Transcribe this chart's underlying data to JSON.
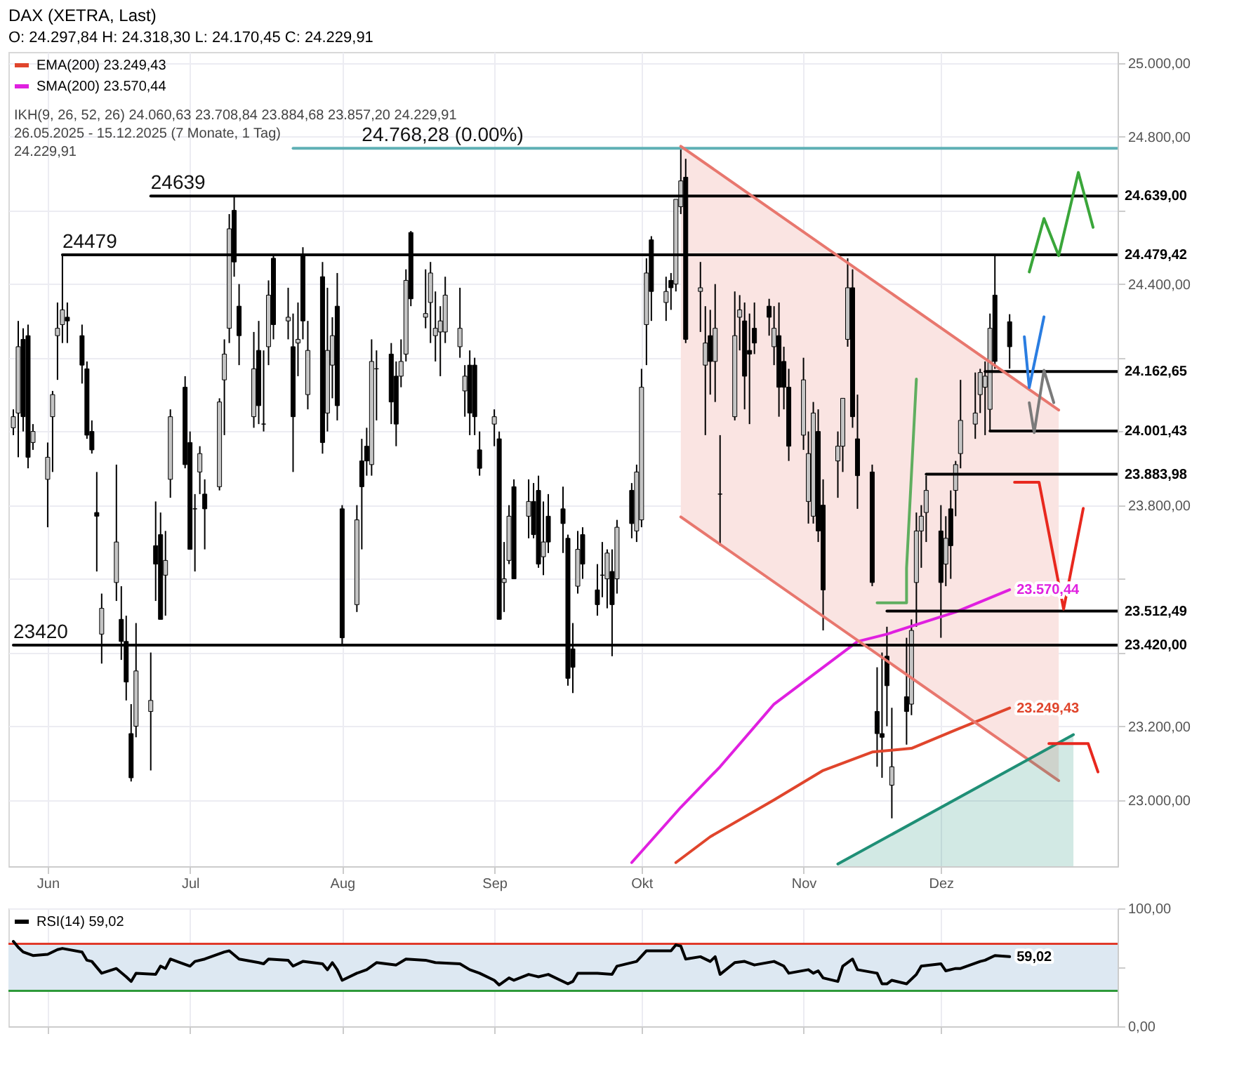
{
  "chart_data": [
    {
      "type": "candlestick",
      "title": "DAX (XETRA, Last)",
      "subtitle": "O: 24.297,84 H: 24.318,30 L: 24.170,45 C: 24.229,91",
      "x": [
        "2025-05-26",
        "2025-05-27",
        "2025-05-28",
        "2025-05-29",
        "2025-05-30",
        "2025-06-02",
        "2025-06-03",
        "2025-06-04",
        "2025-06-05",
        "2025-06-06",
        "2025-06-09",
        "2025-06-10",
        "2025-06-11",
        "2025-06-12",
        "2025-06-13",
        "2025-06-16",
        "2025-06-17",
        "2025-06-18",
        "2025-06-19",
        "2025-06-20",
        "2025-06-23",
        "2025-06-24",
        "2025-06-25",
        "2025-06-26",
        "2025-06-27",
        "2025-06-30",
        "2025-07-01",
        "2025-07-02",
        "2025-07-03",
        "2025-07-04",
        "2025-07-07",
        "2025-07-08",
        "2025-07-09",
        "2025-07-10",
        "2025-07-11",
        "2025-07-14",
        "2025-07-15",
        "2025-07-16",
        "2025-07-17",
        "2025-07-18",
        "2025-07-21",
        "2025-07-22",
        "2025-07-23",
        "2025-07-24",
        "2025-07-25",
        "2025-07-28",
        "2025-07-29",
        "2025-07-30",
        "2025-07-31",
        "2025-08-01",
        "2025-08-04",
        "2025-08-05",
        "2025-08-06",
        "2025-08-07",
        "2025-08-08",
        "2025-08-11",
        "2025-08-12",
        "2025-08-13",
        "2025-08-14",
        "2025-08-15",
        "2025-08-18",
        "2025-08-19",
        "2025-08-20",
        "2025-08-21",
        "2025-08-22",
        "2025-08-25",
        "2025-08-26",
        "2025-08-27",
        "2025-08-28",
        "2025-08-29",
        "2025-09-01",
        "2025-09-02",
        "2025-09-03",
        "2025-09-04",
        "2025-09-05",
        "2025-09-08",
        "2025-09-09",
        "2025-09-10",
        "2025-09-11",
        "2025-09-12",
        "2025-09-15",
        "2025-09-16",
        "2025-09-17",
        "2025-09-18",
        "2025-09-19",
        "2025-09-22",
        "2025-09-23",
        "2025-09-24",
        "2025-09-25",
        "2025-09-26",
        "2025-09-29",
        "2025-09-30",
        "2025-10-01",
        "2025-10-02",
        "2025-10-03",
        "2025-10-06",
        "2025-10-07",
        "2025-10-08",
        "2025-10-09",
        "2025-10-10",
        "2025-10-13",
        "2025-10-14",
        "2025-10-15",
        "2025-10-16",
        "2025-10-17",
        "2025-10-20",
        "2025-10-21",
        "2025-10-22",
        "2025-10-23",
        "2025-10-24",
        "2025-10-27",
        "2025-10-28",
        "2025-10-29",
        "2025-10-30",
        "2025-10-31",
        "2025-11-03",
        "2025-11-04",
        "2025-11-05",
        "2025-11-06",
        "2025-11-07",
        "2025-11-10",
        "2025-11-11",
        "2025-11-12",
        "2025-11-13",
        "2025-11-14",
        "2025-11-17",
        "2025-11-18",
        "2025-11-19",
        "2025-11-20",
        "2025-11-21",
        "2025-11-24",
        "2025-11-25",
        "2025-11-26",
        "2025-11-27",
        "2025-11-28",
        "2025-12-01",
        "2025-12-02",
        "2025-12-03",
        "2025-12-04",
        "2025-12-05",
        "2025-12-08",
        "2025-12-09",
        "2025-12-10",
        "2025-12-11",
        "2025-12-12",
        "2025-12-15"
      ],
      "ohlc": [
        [
          24010,
          24060,
          23990,
          24040
        ],
        [
          24050,
          24300,
          23930,
          24230
        ],
        [
          24250,
          24280,
          24000,
          24040
        ],
        [
          24260,
          24290,
          23900,
          23930
        ],
        [
          23970,
          24020,
          23950,
          24000
        ],
        [
          23870,
          23970,
          23740,
          23930
        ],
        [
          24040,
          24110,
          23890,
          24100
        ],
        [
          24260,
          24350,
          24140,
          24280
        ],
        [
          24290,
          24480,
          24240,
          24330
        ],
        [
          24310,
          24350,
          24240,
          24300
        ],
        [
          24260,
          24290,
          24130,
          24180
        ],
        [
          24170,
          24190,
          23980,
          23990
        ],
        [
          24000,
          24030,
          23940,
          23950
        ],
        [
          23780,
          23890,
          23620,
          23770
        ],
        [
          23450,
          23560,
          23370,
          23520
        ],
        [
          23590,
          23910,
          23540,
          23700
        ],
        [
          23490,
          23580,
          23380,
          23430
        ],
        [
          23430,
          23500,
          23270,
          23320
        ],
        [
          23180,
          23260,
          23050,
          23060
        ],
        [
          23200,
          23480,
          23170,
          23350
        ],
        [
          23240,
          23400,
          23080,
          23270
        ],
        [
          23690,
          23810,
          23540,
          23640
        ],
        [
          23720,
          23780,
          23490,
          23490
        ],
        [
          23610,
          23730,
          23500,
          23650
        ],
        [
          23870,
          24060,
          23820,
          24040
        ],
        [
          24120,
          24150,
          23900,
          23910
        ],
        [
          23970,
          24000,
          23680,
          23680
        ],
        [
          23790,
          23830,
          23620,
          23790
        ],
        [
          23890,
          23960,
          23830,
          23940
        ],
        [
          23830,
          23870,
          23680,
          23790
        ],
        [
          23850,
          24090,
          23840,
          24080
        ],
        [
          24140,
          24250,
          23990,
          24210
        ],
        [
          24280,
          24590,
          24240,
          24550
        ],
        [
          24600,
          24639,
          24420,
          24460
        ],
        [
          24340,
          24400,
          24180,
          24260
        ],
        [
          24040,
          24270,
          24010,
          24170
        ],
        [
          24220,
          24300,
          24020,
          24070
        ],
        [
          24020,
          24220,
          24000,
          24020
        ],
        [
          24230,
          24410,
          24180,
          24370
        ],
        [
          24470,
          24479,
          24250,
          24290
        ],
        [
          24300,
          24390,
          24250,
          24310
        ],
        [
          24230,
          24320,
          23890,
          24040
        ],
        [
          24240,
          24350,
          24150,
          24250
        ],
        [
          24480,
          24500,
          24250,
          24300
        ],
        [
          24100,
          24300,
          24060,
          24220
        ],
        [
          24420,
          24460,
          23940,
          23970
        ],
        [
          24050,
          24390,
          24000,
          24220
        ],
        [
          24180,
          24310,
          24090,
          24260
        ],
        [
          24340,
          24430,
          24030,
          24070
        ],
        [
          23790,
          23800,
          23420,
          23440
        ],
        [
          23530,
          23800,
          23510,
          23760
        ],
        [
          23920,
          23980,
          23680,
          23850
        ],
        [
          23960,
          24010,
          23880,
          23920
        ],
        [
          23910,
          24250,
          23880,
          24190
        ],
        [
          24170,
          24220,
          24030,
          24170
        ],
        [
          24210,
          24240,
          24020,
          24080
        ],
        [
          24150,
          24190,
          23960,
          24020
        ],
        [
          24150,
          24250,
          24120,
          24190
        ],
        [
          24210,
          24440,
          24190,
          24410
        ],
        [
          24540,
          24544,
          24340,
          24360
        ],
        [
          24310,
          24440,
          24280,
          24320
        ],
        [
          24350,
          24460,
          24240,
          24430
        ],
        [
          24260,
          24380,
          24190,
          24280
        ],
        [
          24270,
          24340,
          24150,
          24300
        ],
        [
          24270,
          24420,
          24240,
          24370
        ],
        [
          24230,
          24390,
          24200,
          24280
        ],
        [
          24110,
          24180,
          24040,
          24150
        ],
        [
          24180,
          24220,
          23990,
          24050
        ],
        [
          24180,
          24200,
          23990,
          24040
        ],
        [
          23950,
          24000,
          23880,
          23900
        ],
        [
          24020,
          24060,
          23960,
          24040
        ],
        [
          23980,
          24000,
          23490,
          23490
        ],
        [
          23590,
          23700,
          23510,
          23600
        ],
        [
          23650,
          23800,
          23640,
          23770
        ],
        [
          23850,
          23870,
          23600,
          23600
        ],
        [
          23770,
          23870,
          23710,
          23810
        ],
        [
          23810,
          23860,
          23710,
          23720
        ],
        [
          23840,
          23880,
          23630,
          23640
        ],
        [
          23660,
          23810,
          23610,
          23700
        ],
        [
          23770,
          23830,
          23670,
          23700
        ],
        [
          23790,
          23850,
          23670,
          23750
        ],
        [
          23710,
          23720,
          23310,
          23330
        ],
        [
          23410,
          23480,
          23290,
          23360
        ],
        [
          23580,
          23730,
          23560,
          23680
        ],
        [
          23720,
          23740,
          23600,
          23640
        ],
        [
          23570,
          23640,
          23500,
          23530
        ],
        [
          23610,
          23700,
          23550,
          23610
        ],
        [
          23600,
          23680,
          23520,
          23670
        ],
        [
          23620,
          23680,
          23390,
          23530
        ],
        [
          23600,
          23760,
          23560,
          23740
        ],
        [
          23840,
          23860,
          23710,
          23750
        ],
        [
          23730,
          23910,
          23700,
          23890
        ],
        [
          23760,
          24170,
          23740,
          24120
        ],
        [
          24290,
          24470,
          24180,
          24430
        ],
        [
          24520,
          24530,
          24300,
          24380
        ],
        [
          24350,
          24420,
          24300,
          24380
        ],
        [
          24410,
          24430,
          24330,
          24390
        ],
        [
          24400,
          24630,
          24380,
          24630
        ],
        [
          24610,
          24768.28,
          24590,
          24680
        ],
        [
          24690,
          24740,
          24240,
          24250
        ],
        [
          24380,
          24460,
          24270,
          24390
        ],
        [
          24180,
          24340,
          23990,
          24240
        ],
        [
          24260,
          24330,
          24100,
          24190
        ],
        [
          24190,
          24400,
          24080,
          24280
        ],
        [
          23830,
          23990,
          23690,
          23830
        ],
        [
          24040,
          24380,
          24030,
          24260
        ],
        [
          24310,
          24370,
          24220,
          24330
        ],
        [
          24300,
          24350,
          24060,
          24150
        ],
        [
          24220,
          24320,
          24020,
          24210
        ],
        [
          24280,
          24350,
          24210,
          24240
        ],
        [
          24340,
          24360,
          24260,
          24310
        ],
        [
          24230,
          24340,
          24180,
          24280
        ],
        [
          24260,
          24350,
          24040,
          24120
        ],
        [
          24190,
          24230,
          24060,
          24120
        ],
        [
          24120,
          24170,
          23920,
          23960
        ],
        [
          23990,
          24200,
          23950,
          24140
        ],
        [
          23810,
          24000,
          23750,
          23940
        ],
        [
          23770,
          24080,
          23750,
          24050
        ],
        [
          24000,
          24060,
          23700,
          23730
        ],
        [
          23800,
          23870,
          23460,
          23570
        ],
        [
          23920,
          24000,
          23820,
          23960
        ],
        [
          23960,
          24090,
          23890,
          24090
        ],
        [
          24250,
          24470,
          24230,
          24390
        ],
        [
          24390,
          24440,
          24010,
          24040
        ],
        [
          23980,
          24100,
          23790,
          23880
        ],
        [
          23890,
          23910,
          23580,
          23590
        ],
        [
          23240,
          23360,
          23090,
          23180
        ],
        [
          23180,
          23400,
          23060,
          23170
        ],
        [
          23390,
          23470,
          23200,
          23310
        ],
        [
          23040,
          23250,
          22950,
          23090
        ],
        [
          23280,
          23440,
          23150,
          23240
        ],
        [
          23260,
          23490,
          23230,
          23460
        ],
        [
          23590,
          23780,
          23470,
          23730
        ],
        [
          23730,
          23800,
          23630,
          23770
        ],
        [
          23780,
          23880,
          23700,
          23840
        ],
        [
          23730,
          23800,
          23440,
          23590
        ],
        [
          23640,
          23770,
          23580,
          23710
        ],
        [
          23790,
          23840,
          23600,
          23690
        ],
        [
          23840,
          23920,
          23770,
          23910
        ],
        [
          23940,
          24140,
          23900,
          24030
        ],
        [
          24020,
          24160,
          23980,
          24050
        ],
        [
          24100,
          24170,
          24050,
          24160
        ],
        [
          24120,
          24190,
          23990,
          24150
        ],
        [
          24060,
          24320,
          24000,
          24280
        ],
        [
          24370,
          24479.42,
          24170,
          24190
        ],
        [
          24297.84,
          24318.3,
          24170.45,
          24229.91
        ]
      ],
      "series": [
        {
          "name": "EMA(200) 23.249,43",
          "type": "line",
          "color": "#e0452c",
          "x": [
            "2025-10-08",
            "2025-10-15",
            "2025-10-28",
            "2025-11-07",
            "2025-11-17",
            "2025-11-25",
            "2025-12-04",
            "2025-12-15"
          ],
          "values": [
            22830,
            22900,
            23000,
            23080,
            23130,
            23140,
            23190,
            23249.43
          ],
          "value_labels": [
            null,
            null,
            null,
            null,
            null,
            null,
            null,
            "23.249,43"
          ]
        },
        {
          "name": "SMA(200) 23.570,44",
          "type": "line",
          "color": "#e020e0",
          "x": [
            "2025-09-29",
            "2025-10-09",
            "2025-10-17",
            "2025-10-28",
            "2025-11-06",
            "2025-11-14",
            "2025-11-20",
            "2025-12-04",
            "2025-12-15"
          ],
          "values": [
            22830,
            22980,
            23090,
            23260,
            23350,
            23430,
            23450,
            23510,
            23570.44
          ],
          "value_labels": [
            null,
            null,
            null,
            null,
            null,
            null,
            null,
            null,
            "23.570,44"
          ]
        },
        {
          "type": "line",
          "color": "#5fb0b5",
          "x": [
            "2025-07-22",
            "2026-01-06"
          ],
          "values": [
            24768.28,
            24768.28
          ]
        },
        {
          "type": "line",
          "color": "#000000",
          "x": [
            "2025-06-23",
            "2026-01-06"
          ],
          "values": [
            24639,
            24639
          ],
          "value_labels": [
            null,
            "24.639,00"
          ]
        },
        {
          "type": "line",
          "color": "#000000",
          "x": [
            "2025-06-05",
            "2026-01-06"
          ],
          "values": [
            24479.42,
            24479.42
          ],
          "value_labels": [
            null,
            "24.479,42"
          ]
        },
        {
          "type": "line",
          "color": "#000000",
          "x": [
            "2025-12-10",
            "2026-01-06"
          ],
          "values": [
            24162.65,
            24162.65
          ],
          "value_labels": [
            null,
            "24.162,65"
          ]
        },
        {
          "type": "line",
          "color": "#000000",
          "x": [
            "2025-12-11",
            "2026-01-06"
          ],
          "values": [
            24001.43,
            24001.43
          ],
          "value_labels": [
            null,
            "24.001,43"
          ]
        },
        {
          "type": "line",
          "color": "#000000",
          "x": [
            "2025-11-28",
            "2026-01-06"
          ],
          "values": [
            23883.98,
            23883.98
          ],
          "value_labels": [
            null,
            "23.883,98"
          ]
        },
        {
          "type": "line",
          "color": "#000000",
          "x": [
            "2025-11-20",
            "2026-01-06"
          ],
          "values": [
            23512.49,
            23512.49
          ],
          "value_labels": [
            null,
            "23.512,49"
          ]
        },
        {
          "type": "line",
          "color": "#000000",
          "x": [
            "2025-05-26",
            "2026-01-06"
          ],
          "values": [
            23420,
            23420
          ],
          "value_labels": [
            null,
            "23.420,00"
          ]
        },
        {
          "type": "line",
          "color": "#e8776e",
          "x": [
            "2025-10-09",
            "2025-12-25"
          ],
          "values": [
            24774,
            24058
          ],
          "lower": [
            23768,
            23052
          ],
          "upper": [
            24774,
            24058
          ]
        },
        {
          "type": "line",
          "color": "#e8776e",
          "x": [
            "2025-10-09",
            "2025-12-25"
          ],
          "values": [
            23768,
            23052
          ]
        },
        {
          "type": "area",
          "color": "#1f8f76",
          "x": [
            "2025-11-10",
            "2025-12-28"
          ],
          "values": [
            22826,
            23177
          ]
        },
        {
          "type": "line",
          "color": "#3aa63a",
          "x": [
            "2025-12-19",
            "2025-12-22",
            "2025-12-25",
            "2025-12-29",
            "2026-01-01"
          ],
          "values": [
            24433,
            24578,
            24477,
            24703,
            24554
          ]
        },
        {
          "type": "line",
          "color": "#5fae5f",
          "x": [
            "2025-11-18",
            "2025-11-24",
            "2025-11-24",
            "2025-11-26"
          ],
          "values": [
            23535,
            23535,
            23629,
            24142
          ]
        },
        {
          "type": "line",
          "color": "#2a7de1",
          "x": [
            "2025-12-18",
            "2025-12-19",
            "2025-12-22"
          ],
          "values": [
            24257,
            24119,
            24311
          ]
        },
        {
          "type": "line",
          "color": "#7a7a7a",
          "x": [
            "2025-12-19",
            "2025-12-20",
            "2025-12-22",
            "2025-12-24"
          ],
          "values": [
            24078,
            23997,
            24166,
            24078
          ]
        },
        {
          "type": "line",
          "color": "#e8281e",
          "x": [
            "2025-12-16",
            "2025-12-21",
            "2025-12-26",
            "2025-12-30"
          ],
          "values": [
            23862,
            23862,
            23518,
            23791
          ]
        },
        {
          "type": "line",
          "color": "#e8281e",
          "x": [
            "2025-12-23",
            "2025-12-31",
            "2026-01-02"
          ],
          "values": [
            23153,
            23153,
            23076
          ]
        }
      ],
      "annotations": [
        "IKH(9, 26, 52, 26) 24.060,63 23.708,84 23.884,68 23.857,20 24.229,91",
        "26.05.2025 - 15.12.2025 (7 Monate, 1 Tag)",
        {
          "text": "24.768,28 (0.00%)",
          "x": "2025-08-05",
          "y": 24768.28
        },
        {
          "text": "24639",
          "x": "2025-06-23",
          "y": 24639
        },
        {
          "text": "24479",
          "x": "2025-06-05",
          "y": 24479.42
        },
        {
          "text": "23420",
          "x": "2025-05-26",
          "y": 23420
        },
        "24.229,91"
      ],
      "xlim": [
        "2025-05-25",
        "2026-01-06"
      ],
      "ylim": [
        22820,
        25030
      ],
      "xticks": [
        {
          "value": "2025-06-02",
          "label": "Jun"
        },
        {
          "value": "2025-07-01",
          "label": "Jul"
        },
        {
          "value": "2025-08-01",
          "label": "Aug"
        },
        {
          "value": "2025-09-01",
          "label": "Sep"
        },
        {
          "value": "2025-10-01",
          "label": "Okt"
        },
        {
          "value": "2025-11-03",
          "label": "Nov"
        },
        {
          "value": "2025-12-01",
          "label": "Dez"
        }
      ],
      "yticks": [
        {
          "value": 23000,
          "label": "23.000,00"
        },
        {
          "value": 23200,
          "label": "23.200,00"
        },
        {
          "value": 23400,
          "label": null
        },
        {
          "value": 23600,
          "label": null
        },
        {
          "value": 23800,
          "label": "23.800,00"
        },
        {
          "value": 24000,
          "label": null
        },
        {
          "value": 24200,
          "label": null
        },
        {
          "value": 24400,
          "label": "24.400,00"
        },
        {
          "value": 24600,
          "label": null
        },
        {
          "value": 24800,
          "label": "24.800,00"
        },
        {
          "value": 25000,
          "label": "25.000,00"
        }
      ],
      "grid": true,
      "legend": "top left"
    },
    {
      "type": "line",
      "series": [
        {
          "name": "RSI(14) 59,02",
          "color": "#000000",
          "x": [
            "2025-05-26",
            "2025-05-27",
            "2025-05-28",
            "2025-05-30",
            "2025-06-02",
            "2025-06-04",
            "2025-06-05",
            "2025-06-09",
            "2025-06-10",
            "2025-06-11",
            "2025-06-13",
            "2025-06-16",
            "2025-06-18",
            "2025-06-19",
            "2025-06-20",
            "2025-06-24",
            "2025-06-25",
            "2025-06-26",
            "2025-06-27",
            "2025-07-01",
            "2025-07-02",
            "2025-07-04",
            "2025-07-08",
            "2025-07-09",
            "2025-07-11",
            "2025-07-15",
            "2025-07-16",
            "2025-07-17",
            "2025-07-21",
            "2025-07-22",
            "2025-07-24",
            "2025-07-28",
            "2025-07-29",
            "2025-07-30",
            "2025-07-31",
            "2025-08-01",
            "2025-08-04",
            "2025-08-06",
            "2025-08-08",
            "2025-08-12",
            "2025-08-14",
            "2025-08-18",
            "2025-08-20",
            "2025-08-25",
            "2025-08-27",
            "2025-08-29",
            "2025-09-01",
            "2025-09-02",
            "2025-09-04",
            "2025-09-05",
            "2025-09-08",
            "2025-09-10",
            "2025-09-12",
            "2025-09-16",
            "2025-09-17",
            "2025-09-18",
            "2025-09-22",
            "2025-09-25",
            "2025-09-26",
            "2025-09-30",
            "2025-10-02",
            "2025-10-03",
            "2025-10-07",
            "2025-10-08",
            "2025-10-09",
            "2025-10-10",
            "2025-10-13",
            "2025-10-15",
            "2025-10-16",
            "2025-10-17",
            "2025-10-20",
            "2025-10-22",
            "2025-10-24",
            "2025-10-28",
            "2025-10-30",
            "2025-10-31",
            "2025-11-04",
            "2025-11-05",
            "2025-11-06",
            "2025-11-07",
            "2025-11-10",
            "2025-11-11",
            "2025-11-13",
            "2025-11-14",
            "2025-11-18",
            "2025-11-19",
            "2025-11-20",
            "2025-11-21",
            "2025-11-24",
            "2025-11-26",
            "2025-11-27",
            "2025-12-01",
            "2025-12-02",
            "2025-12-04",
            "2025-12-05",
            "2025-12-09",
            "2025-12-10",
            "2025-12-12",
            "2025-12-15"
          ],
          "values": [
            72,
            67,
            63,
            60,
            61,
            65,
            66,
            63,
            56,
            55,
            45,
            49,
            42,
            38,
            45,
            44,
            51,
            49,
            57,
            51,
            55,
            57,
            63,
            64,
            57,
            54,
            53,
            57,
            56,
            51,
            55,
            53,
            48,
            54,
            48,
            39,
            45,
            48,
            54,
            52,
            57,
            56,
            54,
            53,
            48,
            45,
            39,
            35,
            41,
            39,
            44,
            42,
            44,
            36,
            38,
            45,
            45,
            44,
            51,
            55,
            64,
            64,
            64,
            69,
            68,
            57,
            59,
            55,
            59,
            44,
            54,
            55,
            52,
            55,
            51,
            45,
            48,
            45,
            47,
            41,
            38,
            51,
            57,
            48,
            45,
            36,
            36,
            39,
            36,
            44,
            51,
            53,
            47,
            49,
            49,
            55,
            56,
            60,
            59.02
          ],
          "value_labels": [
            null,
            null,
            null,
            null,
            null,
            null,
            null,
            null,
            null,
            null,
            null,
            null,
            null,
            null,
            null,
            null,
            null,
            null,
            null,
            null,
            null,
            null,
            null,
            null,
            null,
            null,
            null,
            null,
            null,
            null,
            null,
            null,
            null,
            null,
            null,
            null,
            null,
            null,
            null,
            null,
            null,
            null,
            null,
            null,
            null,
            null,
            null,
            null,
            null,
            null,
            null,
            null,
            null,
            null,
            null,
            null,
            null,
            null,
            null,
            null,
            null,
            null,
            null,
            null,
            null,
            null,
            null,
            null,
            null,
            null,
            null,
            null,
            null,
            null,
            null,
            null,
            null,
            null,
            null,
            null,
            null,
            null,
            null,
            null,
            null,
            null,
            null,
            null,
            null,
            null,
            null,
            null,
            null,
            null,
            null,
            null,
            null,
            null,
            "59,02"
          ]
        }
      ],
      "ref_lines": [
        {
          "axis": "y",
          "value": 70,
          "color": "#e03a2a"
        },
        {
          "axis": "y",
          "value": 30,
          "color": "#2e9a3a"
        }
      ],
      "bands": [
        {
          "axis": "y",
          "from": 30,
          "to": 70,
          "color": "#dde8f2"
        }
      ],
      "xlim": [
        "2025-05-25",
        "2026-01-06"
      ],
      "ylim": [
        0,
        100
      ],
      "xticks": [
        {
          "value": "2025-06-02",
          "label": null
        },
        {
          "value": "2025-07-01",
          "label": null
        },
        {
          "value": "2025-08-01",
          "label": null
        },
        {
          "value": "2025-09-01",
          "label": null
        },
        {
          "value": "2025-10-01",
          "label": null
        },
        {
          "value": "2025-11-03",
          "label": null
        },
        {
          "value": "2025-12-01",
          "label": null
        }
      ],
      "yticks": [
        {
          "value": 0,
          "label": "0,00"
        },
        {
          "value": 50,
          "label": null
        },
        {
          "value": 100,
          "label": "100,00"
        }
      ],
      "tick_labels": "y",
      "grid": true,
      "legend": "top left"
    }
  ]
}
